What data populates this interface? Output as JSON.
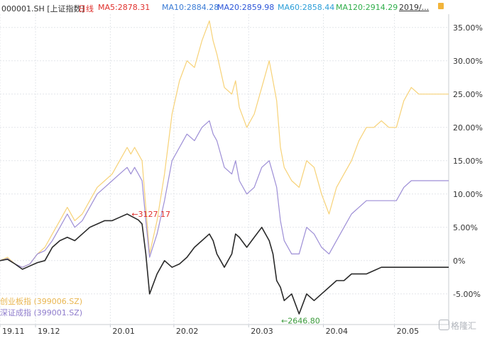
{
  "header": {
    "symbol": "000001.SH [上证指数]",
    "period": "日线",
    "ma5": "MA5:2878.31",
    "ma10": "MA10:2884.28",
    "ma20": "MA20:2859.98",
    "ma60": "MA60:2858.44",
    "ma120": "MA120:2914.29",
    "date_range": "2019/..."
  },
  "chart_data": {
    "type": "line",
    "xlabel": "",
    "ylabel": "",
    "ylim": [
      -10,
      37
    ],
    "y_ticks": [
      35,
      30,
      25,
      20,
      15,
      10,
      5,
      0,
      -5
    ],
    "y_tick_labels": [
      "35.00%",
      "30.00%",
      "25.00%",
      "20.00%",
      "15.00%",
      "10.00%",
      "5.00%",
      "0%",
      "-5.00%"
    ],
    "x_ticks": [
      {
        "label": "19.11",
        "t": 0
      },
      {
        "label": "19.12",
        "t": 9.5
      },
      {
        "label": "20.01",
        "t": 29.5
      },
      {
        "label": "20.02",
        "t": 46.5
      },
      {
        "label": "20.03",
        "t": 66.5
      },
      {
        "label": "20.04",
        "t": 86.5
      },
      {
        "label": "20.05",
        "t": 105.5
      }
    ],
    "t_range": [
      0,
      120
    ],
    "series": [
      {
        "name": "创业板指 (399006.SZ)",
        "color": "#f7d277",
        "x": [
          0,
          2,
          4,
          6,
          8,
          10,
          12,
          14,
          16,
          18,
          20,
          22,
          24,
          26,
          28,
          30,
          32,
          34,
          35,
          36,
          37,
          38,
          39,
          40,
          42,
          44,
          46,
          48,
          50,
          52,
          54,
          56,
          57,
          58,
          60,
          62,
          63,
          64,
          66,
          68,
          70,
          72,
          73,
          74,
          75,
          76,
          78,
          80,
          82,
          84,
          86,
          88,
          90,
          92,
          94,
          96,
          98,
          100,
          102,
          104,
          106,
          108,
          110,
          112,
          114,
          116,
          118,
          120
        ],
        "values": [
          0,
          0.5,
          -0.5,
          -1,
          -0.5,
          1,
          2,
          4,
          6,
          8,
          6,
          7,
          9,
          11,
          12,
          13,
          15,
          17,
          16,
          17,
          16,
          15,
          8,
          1,
          6,
          13,
          22,
          27,
          30,
          29,
          33,
          36,
          33,
          31,
          26,
          25,
          27,
          23,
          20,
          22,
          26,
          30,
          27,
          24,
          17,
          14,
          12,
          11,
          15,
          14,
          10,
          7,
          11,
          13,
          15,
          18,
          20,
          20,
          21,
          20,
          20,
          24,
          26,
          25,
          25,
          25,
          25,
          25
        ]
      },
      {
        "name": "深证成指 (399001.SZ)",
        "color": "#9d8ed6",
        "x": [
          0,
          2,
          4,
          6,
          8,
          10,
          12,
          14,
          16,
          18,
          20,
          22,
          24,
          26,
          28,
          30,
          32,
          34,
          35,
          36,
          37,
          38,
          39,
          40,
          42,
          44,
          46,
          48,
          50,
          52,
          54,
          56,
          57,
          58,
          60,
          62,
          63,
          64,
          66,
          68,
          70,
          72,
          73,
          74,
          75,
          76,
          78,
          80,
          82,
          84,
          86,
          88,
          90,
          92,
          94,
          96,
          98,
          100,
          102,
          104,
          106,
          108,
          110,
          112,
          114,
          116,
          118,
          120
        ],
        "values": [
          0,
          0.3,
          -0.5,
          -1,
          -0.5,
          1,
          1.5,
          3,
          5,
          7,
          5,
          6,
          8,
          10,
          11,
          12,
          13,
          14,
          13,
          14,
          13,
          12,
          6,
          0.5,
          4,
          9,
          15,
          17,
          19,
          18,
          20,
          21,
          19,
          18,
          14,
          13,
          15,
          12,
          10,
          11,
          14,
          15,
          13,
          11,
          6,
          3,
          1,
          1,
          5,
          4,
          2,
          1,
          3,
          5,
          7,
          8,
          9,
          9,
          9,
          9,
          9,
          11,
          12,
          12,
          12,
          12,
          12,
          12
        ]
      },
      {
        "name": "上证指数",
        "color": "#2a2a2a",
        "x": [
          0,
          2,
          4,
          6,
          8,
          10,
          12,
          14,
          16,
          18,
          20,
          22,
          24,
          26,
          28,
          30,
          32,
          34,
          35,
          36,
          37,
          38,
          39,
          40,
          42,
          44,
          46,
          48,
          50,
          52,
          54,
          56,
          57,
          58,
          60,
          62,
          63,
          64,
          66,
          68,
          70,
          72,
          73,
          74,
          75,
          76,
          78,
          80,
          82,
          84,
          86,
          88,
          90,
          92,
          94,
          96,
          98,
          100,
          102,
          104,
          106,
          108,
          110,
          112,
          114,
          116,
          118,
          120
        ],
        "values": [
          0,
          0.2,
          -0.5,
          -1.3,
          -0.8,
          -0.3,
          0,
          2,
          3,
          3.5,
          3,
          4,
          5,
          5.5,
          6,
          6,
          6.5,
          7,
          6.7,
          6.4,
          6.1,
          5.5,
          1,
          -5,
          -2,
          0,
          -1,
          -0.5,
          0.5,
          2,
          3,
          4,
          3,
          1,
          -1,
          1,
          4,
          3.5,
          2,
          3.5,
          5,
          3,
          1,
          -3,
          -4,
          -6,
          -5,
          -8,
          -5,
          -6,
          -5,
          -4,
          -3,
          -3,
          -2,
          -2,
          -2,
          -1.5,
          -1,
          -1,
          -1,
          -1,
          -1,
          -1,
          -1,
          -1,
          -1,
          -1
        ]
      }
    ],
    "annotations": [
      {
        "text": "3127.17",
        "t": 35,
        "y": 7,
        "color": "#e0302c",
        "arrow": "←"
      },
      {
        "text": "2646.80",
        "t": 75,
        "y": -9,
        "color": "#3a9a3a",
        "arrow": "←"
      }
    ],
    "legend": [
      "创业板指 (399006.SZ)",
      "深证成指 (399001.SZ)"
    ],
    "grid": true
  },
  "watermark": "格隆汇"
}
